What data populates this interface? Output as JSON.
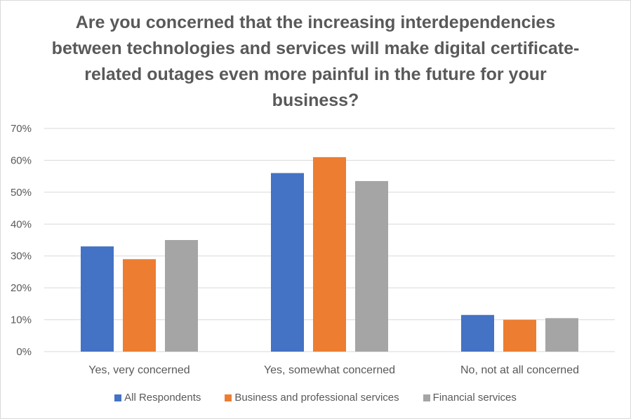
{
  "chart_data": {
    "type": "bar",
    "title": "Are you concerned that the increasing interdependencies between technologies and services will make digital certificate-related outages even more painful in the future for your business?",
    "categories": [
      "Yes, very concerned",
      "Yes, somewhat concerned",
      "No, not at all concerned"
    ],
    "series": [
      {
        "name": "All Respondents",
        "color": "#4472c4",
        "values": [
          33,
          56,
          11.5
        ]
      },
      {
        "name": "Business and professional services",
        "color": "#ed7d31",
        "values": [
          29,
          61,
          10
        ]
      },
      {
        "name": "Financial services",
        "color": "#a5a5a5",
        "values": [
          35,
          53.5,
          10.5
        ]
      }
    ],
    "yticks": [
      "0%",
      "10%",
      "20%",
      "30%",
      "40%",
      "50%",
      "60%",
      "70%"
    ],
    "ylim": [
      0,
      70
    ],
    "grid": true,
    "legend_position": "bottom"
  }
}
